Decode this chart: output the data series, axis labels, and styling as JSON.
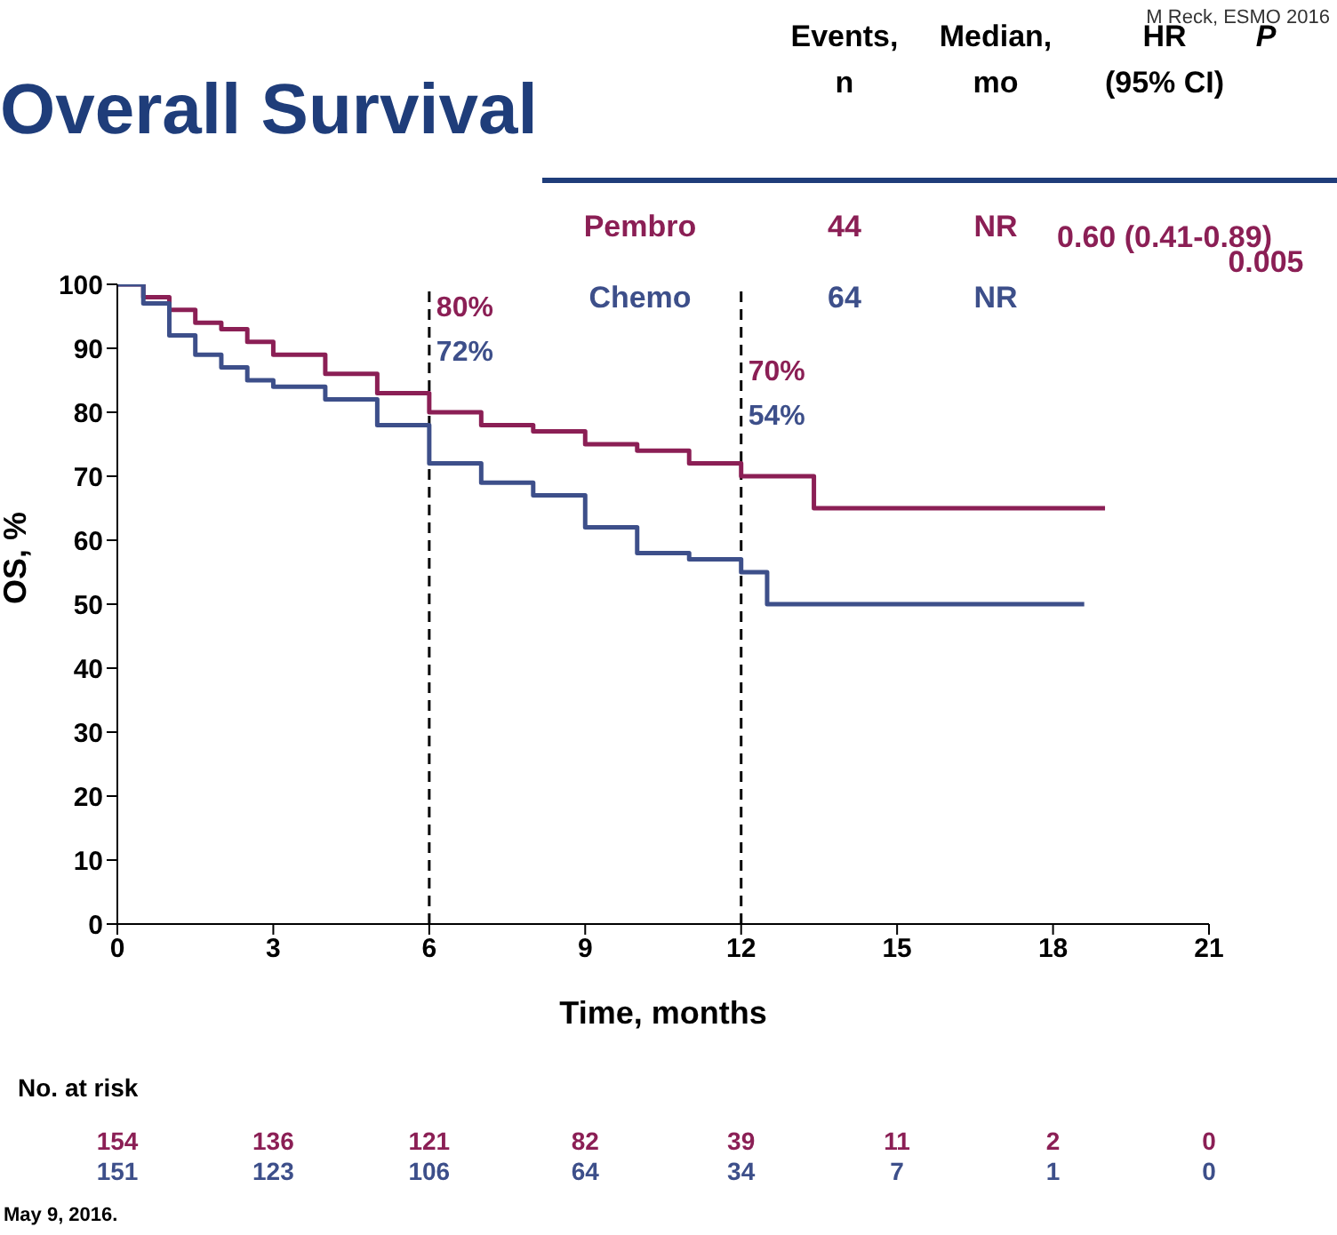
{
  "chart_data": {
    "type": "step",
    "title": "Overall Survival",
    "xlabel": "Time, months",
    "ylabel": "OS,  %",
    "xlim": [
      0,
      21
    ],
    "xticks": [
      0,
      3,
      6,
      9,
      12,
      15,
      18,
      21
    ],
    "ylim": [
      0,
      100
    ],
    "yticks": [
      0,
      10,
      20,
      30,
      40,
      50,
      60,
      70,
      80,
      90,
      100
    ],
    "grid": false,
    "marker": "none",
    "series": [
      {
        "name": "Pembro",
        "color": "#8b1f55",
        "x": [
          0,
          0.5,
          1,
          1.5,
          2,
          2.5,
          3,
          4,
          5,
          6,
          7,
          8,
          9,
          10,
          11,
          12,
          13,
          13.4,
          19
        ],
        "values": [
          100,
          98,
          96,
          94,
          93,
          91,
          89,
          86,
          83,
          80,
          78,
          77,
          75,
          74,
          72,
          70,
          70,
          65,
          65
        ]
      },
      {
        "name": "Chemo",
        "color": "#3d4f8a",
        "x": [
          0,
          0.5,
          1,
          1.5,
          2,
          2.5,
          3,
          4,
          5,
          6,
          7,
          8,
          9,
          10,
          11,
          12,
          12.5,
          18.6
        ],
        "values": [
          100,
          97,
          92,
          89,
          87,
          85,
          84,
          82,
          78,
          72,
          69,
          67,
          62,
          58,
          57,
          55,
          50,
          50
        ]
      }
    ],
    "ref_lines": [
      {
        "axis": "x",
        "value": 6,
        "color": "#000000",
        "line_style": "dashed"
      },
      {
        "axis": "x",
        "value": 12,
        "color": "#000000",
        "line_style": "dashed"
      }
    ],
    "annotations": [
      "Events, n",
      "Median, mo",
      "HR (95% CI)",
      "P",
      "44",
      "NR",
      "64",
      "NR",
      "0.60 (0.41-0.89)",
      "0.005",
      "No. at risk",
      "154",
      "136",
      "121",
      "82",
      "39",
      "11",
      "2",
      "0",
      "151",
      "123",
      "106",
      "64",
      "34",
      "7",
      "1",
      "0",
      "M Reck, ESMO 2016",
      "May 9, 2016.",
      "80%",
      "72%",
      "70%",
      "54%"
    ]
  }
}
